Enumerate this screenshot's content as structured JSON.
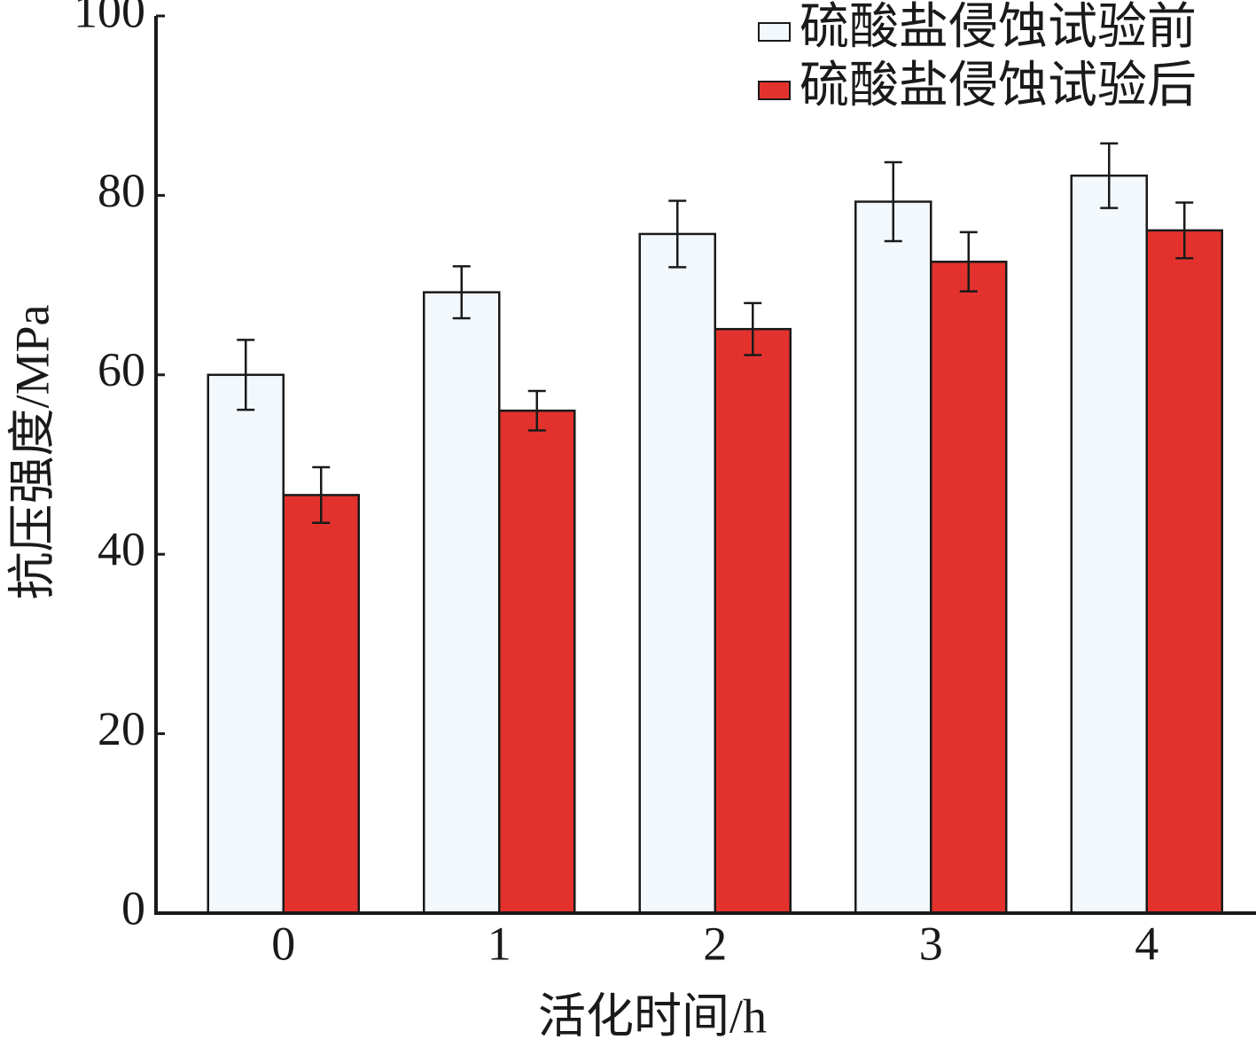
{
  "chart_data": {
    "type": "bar",
    "x_label": "活化时间/h",
    "y_label": "抗压强度/MPa",
    "categories": [
      "0",
      "1",
      "2",
      "3",
      "4"
    ],
    "series": [
      {
        "name": "硫酸盐侵蚀试验前",
        "color": "#f3f8fc",
        "values": [
          60.0,
          69.2,
          75.7,
          79.3,
          82.2
        ],
        "errors": [
          3.9,
          2.9,
          3.7,
          4.4,
          3.6
        ]
      },
      {
        "name": "硫酸盐侵蚀试验后",
        "color": "#e3322d",
        "values": [
          46.6,
          56.0,
          65.1,
          72.6,
          76.1
        ],
        "errors": [
          3.1,
          2.2,
          2.9,
          3.3,
          3.1
        ]
      }
    ],
    "ylim": [
      0,
      100
    ],
    "yticks": [
      0,
      20,
      40,
      60,
      80,
      100
    ],
    "legend": "upper right"
  }
}
